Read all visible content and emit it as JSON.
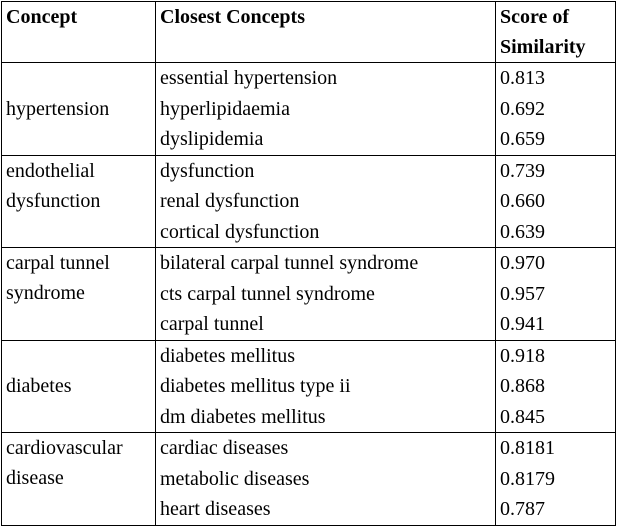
{
  "header": [
    "Concept",
    "Closest Concepts",
    "Score of Similarity"
  ],
  "groups": [
    {
      "concept": "hypertension",
      "rows": [
        [
          "essential hypertension",
          "0.813"
        ],
        [
          "hyperlipidaemia",
          "0.692"
        ],
        [
          "dyslipidemia",
          "0.659"
        ]
      ]
    },
    {
      "concept": "endothelial dysfunction",
      "rows": [
        [
          "dysfunction",
          "0.739"
        ],
        [
          "renal dysfunction",
          "0.660"
        ],
        [
          "cortical dysfunction",
          "0.639"
        ]
      ]
    },
    {
      "concept": "carpal tunnel syndrome",
      "rows": [
        [
          "bilateral carpal tunnel syndrome",
          "0.970"
        ],
        [
          "cts carpal tunnel syndrome",
          "0.957"
        ],
        [
          "carpal tunnel",
          "0.941"
        ]
      ]
    },
    {
      "concept": "diabetes",
      "rows": [
        [
          "diabetes mellitus",
          "0.918"
        ],
        [
          "diabetes mellitus type ii",
          "0.868"
        ],
        [
          "dm diabetes mellitus",
          "0.845"
        ]
      ]
    },
    {
      "concept": "cardiovascular disease",
      "rows": [
        [
          "cardiac diseases",
          "0.8181"
        ],
        [
          "metabolic diseases",
          "0.8179"
        ],
        [
          "heart diseases",
          "0.787"
        ]
      ]
    }
  ]
}
